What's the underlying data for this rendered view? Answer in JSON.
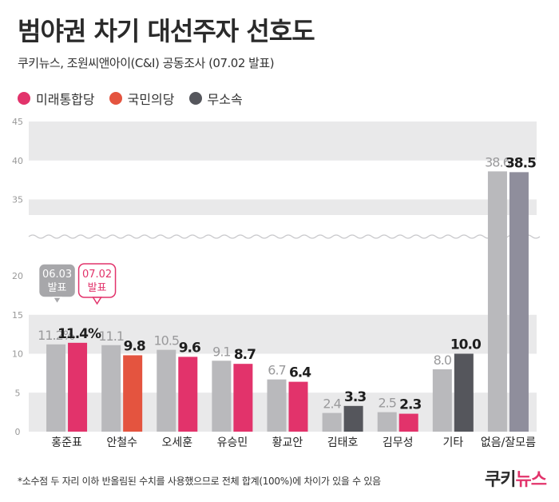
{
  "title": "범야권 차기 대선주자 선호도",
  "subtitle": "쿠키뉴스, 조원씨앤아이(C&I) 공동조사 (07.02 발표)",
  "legend": [
    {
      "label": "미래통합당",
      "color": "#e2336b"
    },
    {
      "label": "국민의당",
      "color": "#e4543f"
    },
    {
      "label": "무소속",
      "color": "#55565c"
    }
  ],
  "callouts": {
    "prev": {
      "line1": "06.03",
      "line2": "발표"
    },
    "curr": {
      "line1": "07.02",
      "line2": "발표"
    }
  },
  "footnote": "*소수점 두 자리 이하 반올림된 수치를 사용했으므로 전체 합계(100%)에 차이가 있을 수 있음",
  "logo": {
    "part1": "쿠키",
    "part2": "뉴스"
  },
  "chart_data": {
    "type": "bar",
    "axis_break": [
      20,
      35
    ],
    "ylim": [
      0,
      45
    ],
    "yticks": [
      0,
      5,
      10,
      15,
      20,
      35,
      40,
      45
    ],
    "categories": [
      "홍준표",
      "안철수",
      "오세훈",
      "유승민",
      "황교안",
      "김태호",
      "김무성",
      "기타",
      "없음/잘모름"
    ],
    "series": [
      {
        "name": "06.03 발표",
        "values": [
          11.2,
          11.1,
          10.5,
          9.1,
          6.7,
          2.4,
          2.5,
          8.0,
          38.6
        ],
        "labels": [
          "11.2%",
          "11.1",
          "10.5",
          "9.1",
          "6.7",
          "2.4",
          "2.5",
          "8.0",
          "38.6"
        ]
      },
      {
        "name": "07.02 발표",
        "values": [
          11.4,
          9.8,
          9.6,
          8.7,
          6.4,
          3.3,
          2.3,
          10.0,
          38.5
        ],
        "labels": [
          "11.4%",
          "9.8",
          "9.6",
          "8.7",
          "6.4",
          "3.3",
          "2.3",
          "10.0",
          "38.5"
        ]
      }
    ],
    "prev_color": "#b9b9bc",
    "curr_colors": [
      "#e2336b",
      "#e4543f",
      "#e2336b",
      "#e2336b",
      "#e2336b",
      "#55565c",
      "#e2336b",
      "#55565c",
      "#8f8e9c"
    ],
    "other_prev_color": "#b9b9bc",
    "band_color": "#e9e9ea"
  }
}
